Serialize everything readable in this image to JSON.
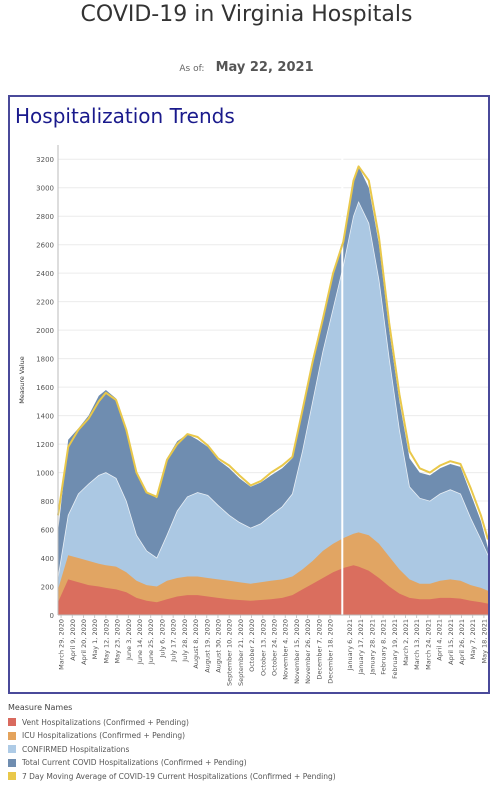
{
  "header": {
    "title": "COVID-19 in Virginia Hospitals",
    "asof_label": "As of:",
    "asof_date": "May 22, 2021"
  },
  "panel": {
    "title": "Hospitalization Trends"
  },
  "legend": {
    "title": "Measure Names",
    "items": [
      {
        "label": "Vent Hospitalizations (Confirmed + Pending)",
        "color": "#d96a5e"
      },
      {
        "label": "ICU Hospitalizations (Confirmed + Pending)",
        "color": "#e4a35c"
      },
      {
        "label": "CONFIRMED Hospitalizations",
        "color": "#aecbe6"
      },
      {
        "label": "Total Current COVID Hospitalizations (Confirmed + Pending)",
        "color": "#6f8db0"
      },
      {
        "label": "7 Day Moving Average of COVID-19 Current Hospitalizations (Confirmed + Pending)",
        "color": "#e9c84a"
      }
    ]
  },
  "chart_data": {
    "type": "area",
    "ylabel": "Measure Value",
    "xlabel": "",
    "ylim": [
      0,
      3300
    ],
    "yticks": [
      0,
      200,
      400,
      600,
      800,
      1000,
      1200,
      1400,
      1600,
      1800,
      2000,
      2200,
      2400,
      2600,
      2800,
      3000,
      3200
    ],
    "x_range": [
      "March 26, 2020",
      "May 22, 2021"
    ],
    "x_tick_labels": [
      "March 29, 2020",
      "April 9, 2020",
      "April 20, 2020",
      "May 1, 2020",
      "May 12, 2020",
      "May 23, 2020",
      "June 3, 2020",
      "June 14, 2020",
      "June 25, 2020",
      "July 6, 2020",
      "July 17, 2020",
      "July 28, 2020",
      "August 8, 2020",
      "August 19, 2020",
      "August 30, 2020",
      "September 10, 2020",
      "September 21, 2020",
      "October 2, 2020",
      "October 13, 2020",
      "October 24, 2020",
      "November 4, 2020",
      "November 15, 2020",
      "November 26, 2020",
      "December 7, 2020",
      "December 18, 2020",
      "January 6, 2021",
      "January 17, 2021",
      "January 28, 2021",
      "February 8, 2021",
      "February 19, 2021",
      "March 2, 2021",
      "March 13, 2021",
      "March 24, 2021",
      "April 4, 2021",
      "April 15, 2021",
      "April 26, 2021",
      "May 7, 2021",
      "May 18, 2021"
    ],
    "reference_line_date": "December 30, 2020",
    "series": [
      {
        "name": "Total Current COVID Hospitalizations (Confirmed + Pending)",
        "color": "#6f8db0",
        "points": [
          [
            "2020-03-26",
            580
          ],
          [
            "2020-04-05",
            1230
          ],
          [
            "2020-04-15",
            1310
          ],
          [
            "2020-04-25",
            1400
          ],
          [
            "2020-05-05",
            1540
          ],
          [
            "2020-05-12",
            1580
          ],
          [
            "2020-05-22",
            1520
          ],
          [
            "2020-06-01",
            1300
          ],
          [
            "2020-06-11",
            1000
          ],
          [
            "2020-06-21",
            870
          ],
          [
            "2020-07-01",
            820
          ],
          [
            "2020-07-11",
            1100
          ],
          [
            "2020-07-21",
            1220
          ],
          [
            "2020-07-31",
            1270
          ],
          [
            "2020-08-10",
            1230
          ],
          [
            "2020-08-20",
            1180
          ],
          [
            "2020-08-30",
            1090
          ],
          [
            "2020-09-10",
            1030
          ],
          [
            "2020-09-20",
            960
          ],
          [
            "2020-10-01",
            900
          ],
          [
            "2020-10-11",
            930
          ],
          [
            "2020-10-21",
            980
          ],
          [
            "2020-11-01",
            1030
          ],
          [
            "2020-11-11",
            1100
          ],
          [
            "2020-11-21",
            1450
          ],
          [
            "2020-12-01",
            1800
          ],
          [
            "2020-12-11",
            2100
          ],
          [
            "2020-12-21",
            2400
          ],
          [
            "2020-12-31",
            2650
          ],
          [
            "2021-01-10",
            3050
          ],
          [
            "2021-01-15",
            3150
          ],
          [
            "2021-01-25",
            3000
          ],
          [
            "2021-02-04",
            2600
          ],
          [
            "2021-02-14",
            2000
          ],
          [
            "2021-02-24",
            1500
          ],
          [
            "2021-03-06",
            1100
          ],
          [
            "2021-03-16",
            1000
          ],
          [
            "2021-03-26",
            980
          ],
          [
            "2021-04-05",
            1030
          ],
          [
            "2021-04-15",
            1060
          ],
          [
            "2021-04-25",
            1040
          ],
          [
            "2021-05-05",
            850
          ],
          [
            "2021-05-15",
            660
          ],
          [
            "2021-05-22",
            470
          ]
        ]
      },
      {
        "name": "CONFIRMED Hospitalizations",
        "color": "#aecbe6",
        "points": [
          [
            "2020-03-26",
            260
          ],
          [
            "2020-04-05",
            700
          ],
          [
            "2020-04-15",
            850
          ],
          [
            "2020-04-25",
            920
          ],
          [
            "2020-05-05",
            980
          ],
          [
            "2020-05-12",
            1000
          ],
          [
            "2020-05-22",
            960
          ],
          [
            "2020-06-01",
            800
          ],
          [
            "2020-06-11",
            560
          ],
          [
            "2020-06-21",
            450
          ],
          [
            "2020-07-01",
            400
          ],
          [
            "2020-07-11",
            560
          ],
          [
            "2020-07-21",
            730
          ],
          [
            "2020-07-31",
            830
          ],
          [
            "2020-08-10",
            860
          ],
          [
            "2020-08-20",
            840
          ],
          [
            "2020-08-30",
            770
          ],
          [
            "2020-09-10",
            700
          ],
          [
            "2020-09-20",
            650
          ],
          [
            "2020-10-01",
            610
          ],
          [
            "2020-10-11",
            640
          ],
          [
            "2020-10-21",
            700
          ],
          [
            "2020-11-01",
            760
          ],
          [
            "2020-11-11",
            850
          ],
          [
            "2020-11-21",
            1150
          ],
          [
            "2020-12-01",
            1500
          ],
          [
            "2020-12-11",
            1850
          ],
          [
            "2020-12-21",
            2150
          ],
          [
            "2020-12-31",
            2450
          ],
          [
            "2021-01-10",
            2800
          ],
          [
            "2021-01-15",
            2900
          ],
          [
            "2021-01-25",
            2750
          ],
          [
            "2021-02-04",
            2350
          ],
          [
            "2021-02-14",
            1800
          ],
          [
            "2021-02-24",
            1300
          ],
          [
            "2021-03-06",
            900
          ],
          [
            "2021-03-16",
            820
          ],
          [
            "2021-03-26",
            800
          ],
          [
            "2021-04-05",
            850
          ],
          [
            "2021-04-15",
            880
          ],
          [
            "2021-04-25",
            850
          ],
          [
            "2021-05-05",
            680
          ],
          [
            "2021-05-15",
            530
          ],
          [
            "2021-05-22",
            420
          ]
        ]
      },
      {
        "name": "ICU Hospitalizations (Confirmed + Pending)",
        "color": "#e4a35c",
        "points": [
          [
            "2020-03-26",
            180
          ],
          [
            "2020-04-05",
            420
          ],
          [
            "2020-04-15",
            400
          ],
          [
            "2020-04-25",
            380
          ],
          [
            "2020-05-05",
            360
          ],
          [
            "2020-05-12",
            350
          ],
          [
            "2020-05-22",
            340
          ],
          [
            "2020-06-01",
            300
          ],
          [
            "2020-06-11",
            240
          ],
          [
            "2020-06-21",
            210
          ],
          [
            "2020-07-01",
            200
          ],
          [
            "2020-07-11",
            240
          ],
          [
            "2020-07-21",
            260
          ],
          [
            "2020-07-31",
            270
          ],
          [
            "2020-08-10",
            270
          ],
          [
            "2020-08-20",
            260
          ],
          [
            "2020-08-30",
            250
          ],
          [
            "2020-09-10",
            240
          ],
          [
            "2020-09-20",
            230
          ],
          [
            "2020-10-01",
            220
          ],
          [
            "2020-10-11",
            230
          ],
          [
            "2020-10-21",
            240
          ],
          [
            "2020-11-01",
            250
          ],
          [
            "2020-11-11",
            270
          ],
          [
            "2020-11-21",
            320
          ],
          [
            "2020-12-01",
            380
          ],
          [
            "2020-12-11",
            450
          ],
          [
            "2020-12-21",
            500
          ],
          [
            "2020-12-31",
            540
          ],
          [
            "2021-01-10",
            570
          ],
          [
            "2021-01-15",
            580
          ],
          [
            "2021-01-25",
            560
          ],
          [
            "2021-02-04",
            500
          ],
          [
            "2021-02-14",
            410
          ],
          [
            "2021-02-24",
            320
          ],
          [
            "2021-03-06",
            250
          ],
          [
            "2021-03-16",
            220
          ],
          [
            "2021-03-26",
            220
          ],
          [
            "2021-04-05",
            240
          ],
          [
            "2021-04-15",
            250
          ],
          [
            "2021-04-25",
            240
          ],
          [
            "2021-05-05",
            210
          ],
          [
            "2021-05-15",
            190
          ],
          [
            "2021-05-22",
            170
          ]
        ]
      },
      {
        "name": "Vent Hospitalizations (Confirmed + Pending)",
        "color": "#d96a5e",
        "points": [
          [
            "2020-03-26",
            90
          ],
          [
            "2020-04-05",
            250
          ],
          [
            "2020-04-15",
            230
          ],
          [
            "2020-04-25",
            210
          ],
          [
            "2020-05-05",
            200
          ],
          [
            "2020-05-12",
            190
          ],
          [
            "2020-05-22",
            180
          ],
          [
            "2020-06-01",
            160
          ],
          [
            "2020-06-11",
            120
          ],
          [
            "2020-06-21",
            100
          ],
          [
            "2020-07-01",
            90
          ],
          [
            "2020-07-11",
            110
          ],
          [
            "2020-07-21",
            130
          ],
          [
            "2020-07-31",
            140
          ],
          [
            "2020-08-10",
            140
          ],
          [
            "2020-08-20",
            130
          ],
          [
            "2020-08-30",
            120
          ],
          [
            "2020-09-10",
            110
          ],
          [
            "2020-09-20",
            105
          ],
          [
            "2020-10-01",
            100
          ],
          [
            "2020-10-11",
            105
          ],
          [
            "2020-10-21",
            110
          ],
          [
            "2020-11-01",
            120
          ],
          [
            "2020-11-11",
            140
          ],
          [
            "2020-11-21",
            180
          ],
          [
            "2020-12-01",
            220
          ],
          [
            "2020-12-11",
            260
          ],
          [
            "2020-12-21",
            300
          ],
          [
            "2020-12-31",
            330
          ],
          [
            "2021-01-10",
            350
          ],
          [
            "2021-01-15",
            340
          ],
          [
            "2021-01-25",
            310
          ],
          [
            "2021-02-04",
            260
          ],
          [
            "2021-02-14",
            200
          ],
          [
            "2021-02-24",
            150
          ],
          [
            "2021-03-06",
            120
          ],
          [
            "2021-03-16",
            110
          ],
          [
            "2021-03-26",
            110
          ],
          [
            "2021-04-05",
            120
          ],
          [
            "2021-04-15",
            120
          ],
          [
            "2021-04-25",
            115
          ],
          [
            "2021-05-05",
            100
          ],
          [
            "2021-05-15",
            90
          ],
          [
            "2021-05-22",
            80
          ]
        ]
      },
      {
        "name": "7 Day Moving Average of COVID-19 Current Hospitalizations (Confirmed + Pending)",
        "color": "#e9c84a",
        "points": [
          [
            "2020-03-26",
            700
          ],
          [
            "2020-04-05",
            1180
          ],
          [
            "2020-04-15",
            1300
          ],
          [
            "2020-04-25",
            1380
          ],
          [
            "2020-05-05",
            1500
          ],
          [
            "2020-05-12",
            1560
          ],
          [
            "2020-05-22",
            1510
          ],
          [
            "2020-06-01",
            1300
          ],
          [
            "2020-06-11",
            1000
          ],
          [
            "2020-06-21",
            860
          ],
          [
            "2020-07-01",
            830
          ],
          [
            "2020-07-11",
            1090
          ],
          [
            "2020-07-21",
            1200
          ],
          [
            "2020-07-31",
            1270
          ],
          [
            "2020-08-10",
            1250
          ],
          [
            "2020-08-20",
            1190
          ],
          [
            "2020-08-30",
            1100
          ],
          [
            "2020-09-10",
            1050
          ],
          [
            "2020-09-20",
            980
          ],
          [
            "2020-10-01",
            910
          ],
          [
            "2020-10-11",
            940
          ],
          [
            "2020-10-21",
            1000
          ],
          [
            "2020-11-01",
            1050
          ],
          [
            "2020-11-11",
            1110
          ],
          [
            "2020-11-21",
            1440
          ],
          [
            "2020-12-01",
            1780
          ],
          [
            "2020-12-11",
            2080
          ],
          [
            "2020-12-21",
            2400
          ],
          [
            "2020-12-31",
            2620
          ],
          [
            "2021-01-10",
            3050
          ],
          [
            "2021-01-15",
            3150
          ],
          [
            "2021-01-25",
            3050
          ],
          [
            "2021-02-04",
            2650
          ],
          [
            "2021-02-14",
            2050
          ],
          [
            "2021-02-24",
            1550
          ],
          [
            "2021-03-06",
            1150
          ],
          [
            "2021-03-16",
            1030
          ],
          [
            "2021-03-26",
            1000
          ],
          [
            "2021-04-05",
            1050
          ],
          [
            "2021-04-15",
            1080
          ],
          [
            "2021-04-25",
            1060
          ],
          [
            "2021-05-05",
            890
          ],
          [
            "2021-05-15",
            700
          ],
          [
            "2021-05-22",
            530
          ]
        ]
      }
    ]
  }
}
